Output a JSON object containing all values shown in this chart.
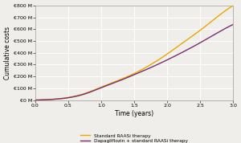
{
  "title": "",
  "xlabel": "Time (years)",
  "ylabel": "Cumulative costs",
  "xlim": [
    0.0,
    3.0
  ],
  "ylim": [
    0,
    800
  ],
  "xticks": [
    0.0,
    0.5,
    1.0,
    1.5,
    2.0,
    2.5,
    3.0
  ],
  "ytick_labels": [
    "€0 M",
    "€100 M",
    "€200 M",
    "€300 M",
    "€400 M",
    "€500 M",
    "€600 M",
    "€700 M",
    "€800 M"
  ],
  "ytick_values": [
    0,
    100,
    200,
    300,
    400,
    500,
    600,
    700,
    800
  ],
  "dapa_color": "#7b2d6e",
  "standard_color": "#e8a800",
  "legend_dapa": "Dapagliflozin + standard RAASi therapy",
  "legend_standard": "Standard RAASi therapy",
  "background_color": "#f0eeeb",
  "grid_color": "#ffffff",
  "dapa_x": [
    0.0,
    0.25,
    0.5,
    0.75,
    1.0,
    1.25,
    1.5,
    1.75,
    2.0,
    2.25,
    2.5,
    2.75,
    3.0
  ],
  "dapa_y": [
    0,
    6,
    20,
    52,
    105,
    158,
    215,
    275,
    340,
    410,
    485,
    565,
    640
  ],
  "standard_x": [
    0.0,
    0.25,
    0.5,
    0.75,
    1.0,
    1.25,
    1.5,
    1.75,
    2.0,
    2.25,
    2.5,
    2.75,
    3.0
  ],
  "standard_y": [
    0,
    6,
    22,
    56,
    110,
    165,
    225,
    300,
    390,
    490,
    590,
    700,
    800
  ]
}
